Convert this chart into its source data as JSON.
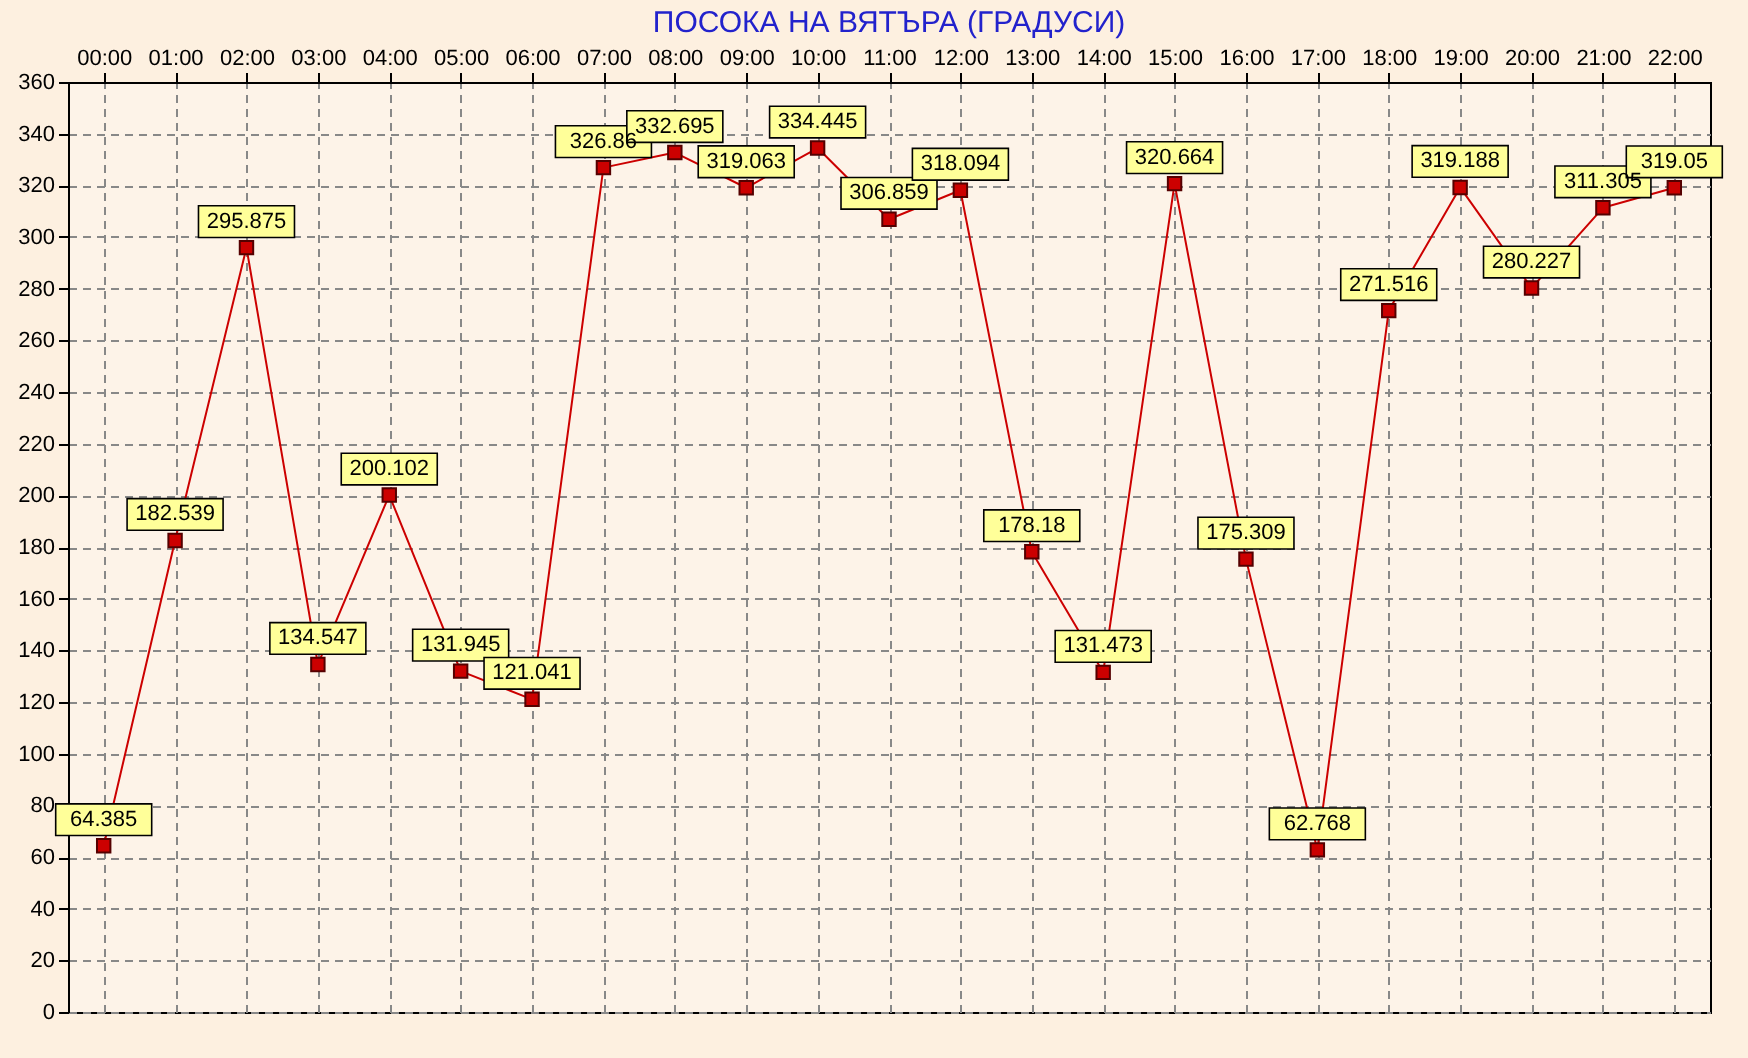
{
  "chart_data": {
    "type": "line",
    "title": "ПОСОКА НА ВЯТЪРА    (ГРАДУСИ)",
    "categories": [
      "00:00",
      "01:00",
      "02:00",
      "03:00",
      "04:00",
      "05:00",
      "06:00",
      "07:00",
      "08:00",
      "09:00",
      "10:00",
      "11:00",
      "12:00",
      "13:00",
      "14:00",
      "15:00",
      "16:00",
      "17:00",
      "18:00",
      "19:00",
      "20:00",
      "21:00",
      "22:00"
    ],
    "series": [
      {
        "color": "#cc0000",
        "values": [
          64.385,
          182.539,
          295.875,
          134.547,
          200.102,
          131.945,
          121.041,
          326.86,
          332.695,
          319.063,
          334.445,
          306.859,
          318.094,
          178.18,
          131.473,
          320.664,
          175.309,
          62.768,
          271.516,
          319.188,
          280.227,
          311.305,
          319.05
        ]
      }
    ],
    "ylim": [
      0,
      360
    ],
    "yticks": [
      0,
      20,
      40,
      60,
      80,
      100,
      120,
      140,
      160,
      180,
      200,
      220,
      240,
      260,
      280,
      300,
      320,
      340,
      360
    ],
    "grid": true,
    "marker": "square",
    "line_style": "solid",
    "data_labels": true
  }
}
